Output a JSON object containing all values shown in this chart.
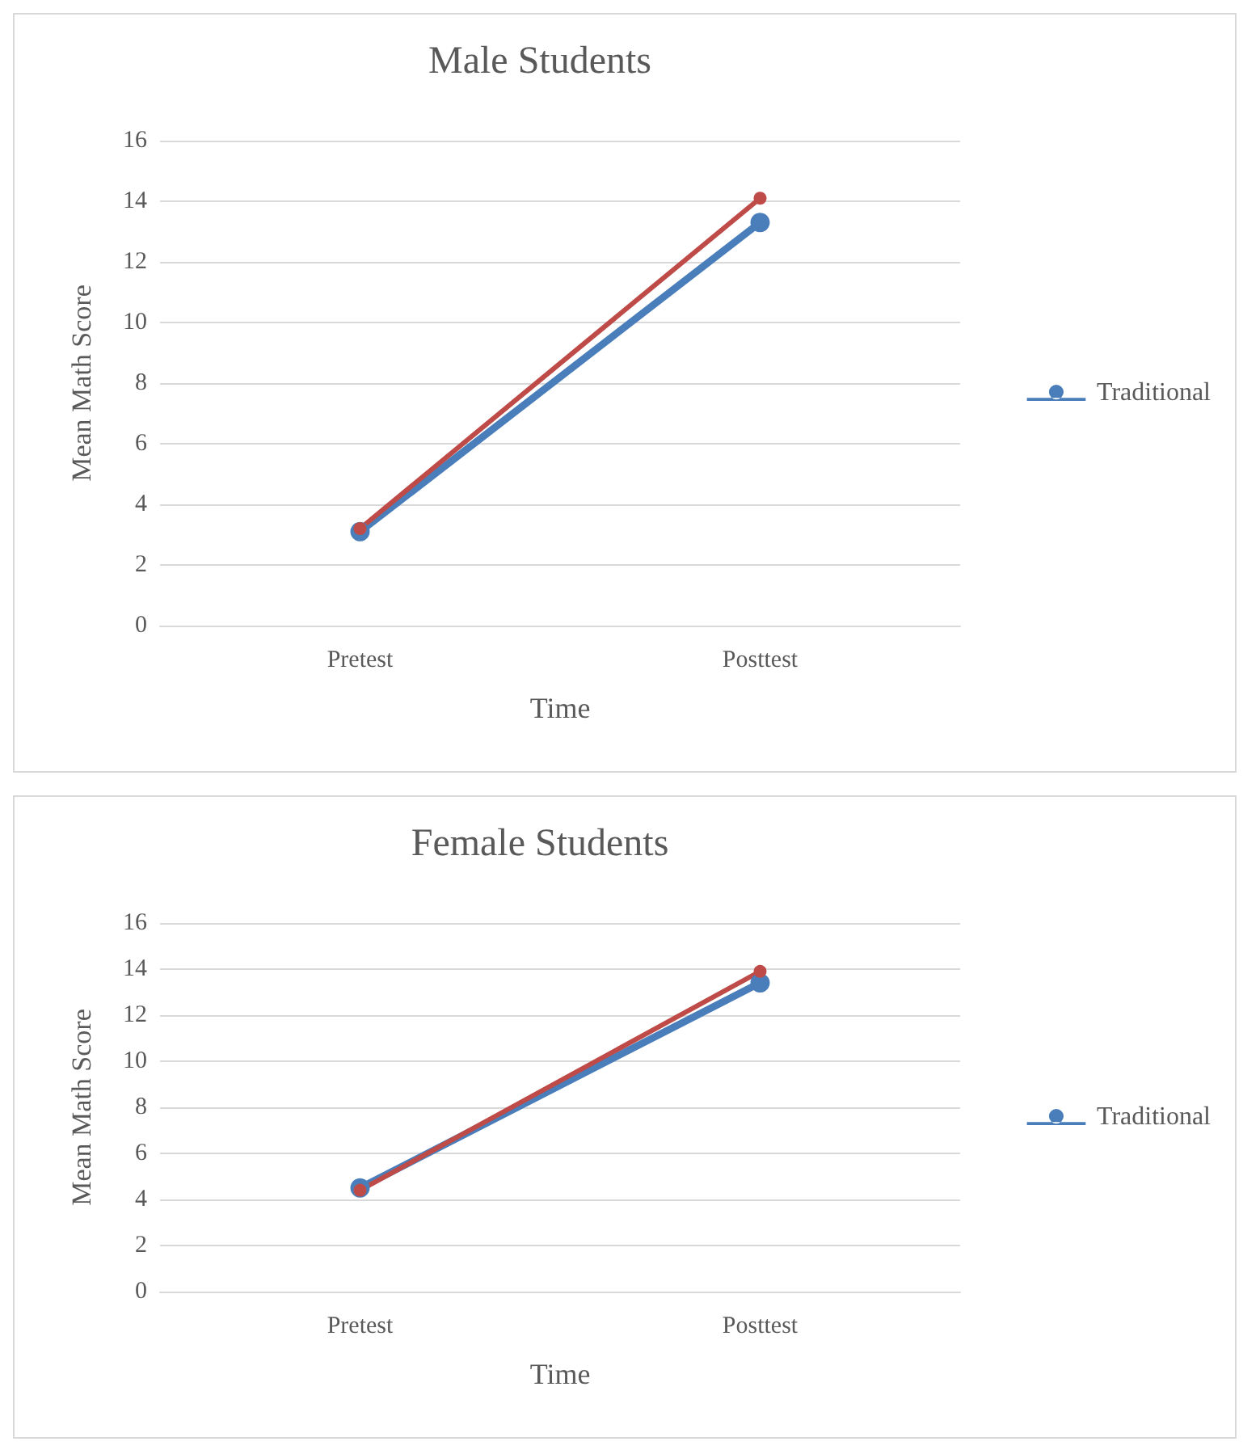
{
  "chart_data": [
    {
      "type": "line",
      "title": "Male Students",
      "xlabel": "Time",
      "ylabel": "Mean Math Score",
      "categories": [
        "Pretest",
        "Posttest"
      ],
      "ylim": [
        0,
        16
      ],
      "yticks": [
        0,
        2,
        4,
        6,
        8,
        10,
        12,
        14,
        16
      ],
      "grid": "y",
      "legend": "right",
      "marker": "circle",
      "series": [
        {
          "name": "Traditional",
          "color": "#4a7ebb",
          "values": [
            3.1,
            13.3
          ]
        },
        {
          "color": "#be4b48",
          "values": [
            3.2,
            14.1
          ]
        }
      ]
    },
    {
      "type": "line",
      "title": "Female Students",
      "xlabel": "Time",
      "ylabel": "Mean Math Score",
      "categories": [
        "Pretest",
        "Posttest"
      ],
      "ylim": [
        0,
        16
      ],
      "yticks": [
        0,
        2,
        4,
        6,
        8,
        10,
        12,
        14,
        16
      ],
      "grid": "y",
      "legend": "right",
      "marker": "circle",
      "series": [
        {
          "name": "Traditional",
          "color": "#4a7ebb",
          "values": [
            4.5,
            13.4
          ]
        },
        {
          "color": "#be4b48",
          "values": [
            4.4,
            13.9
          ]
        }
      ]
    }
  ]
}
